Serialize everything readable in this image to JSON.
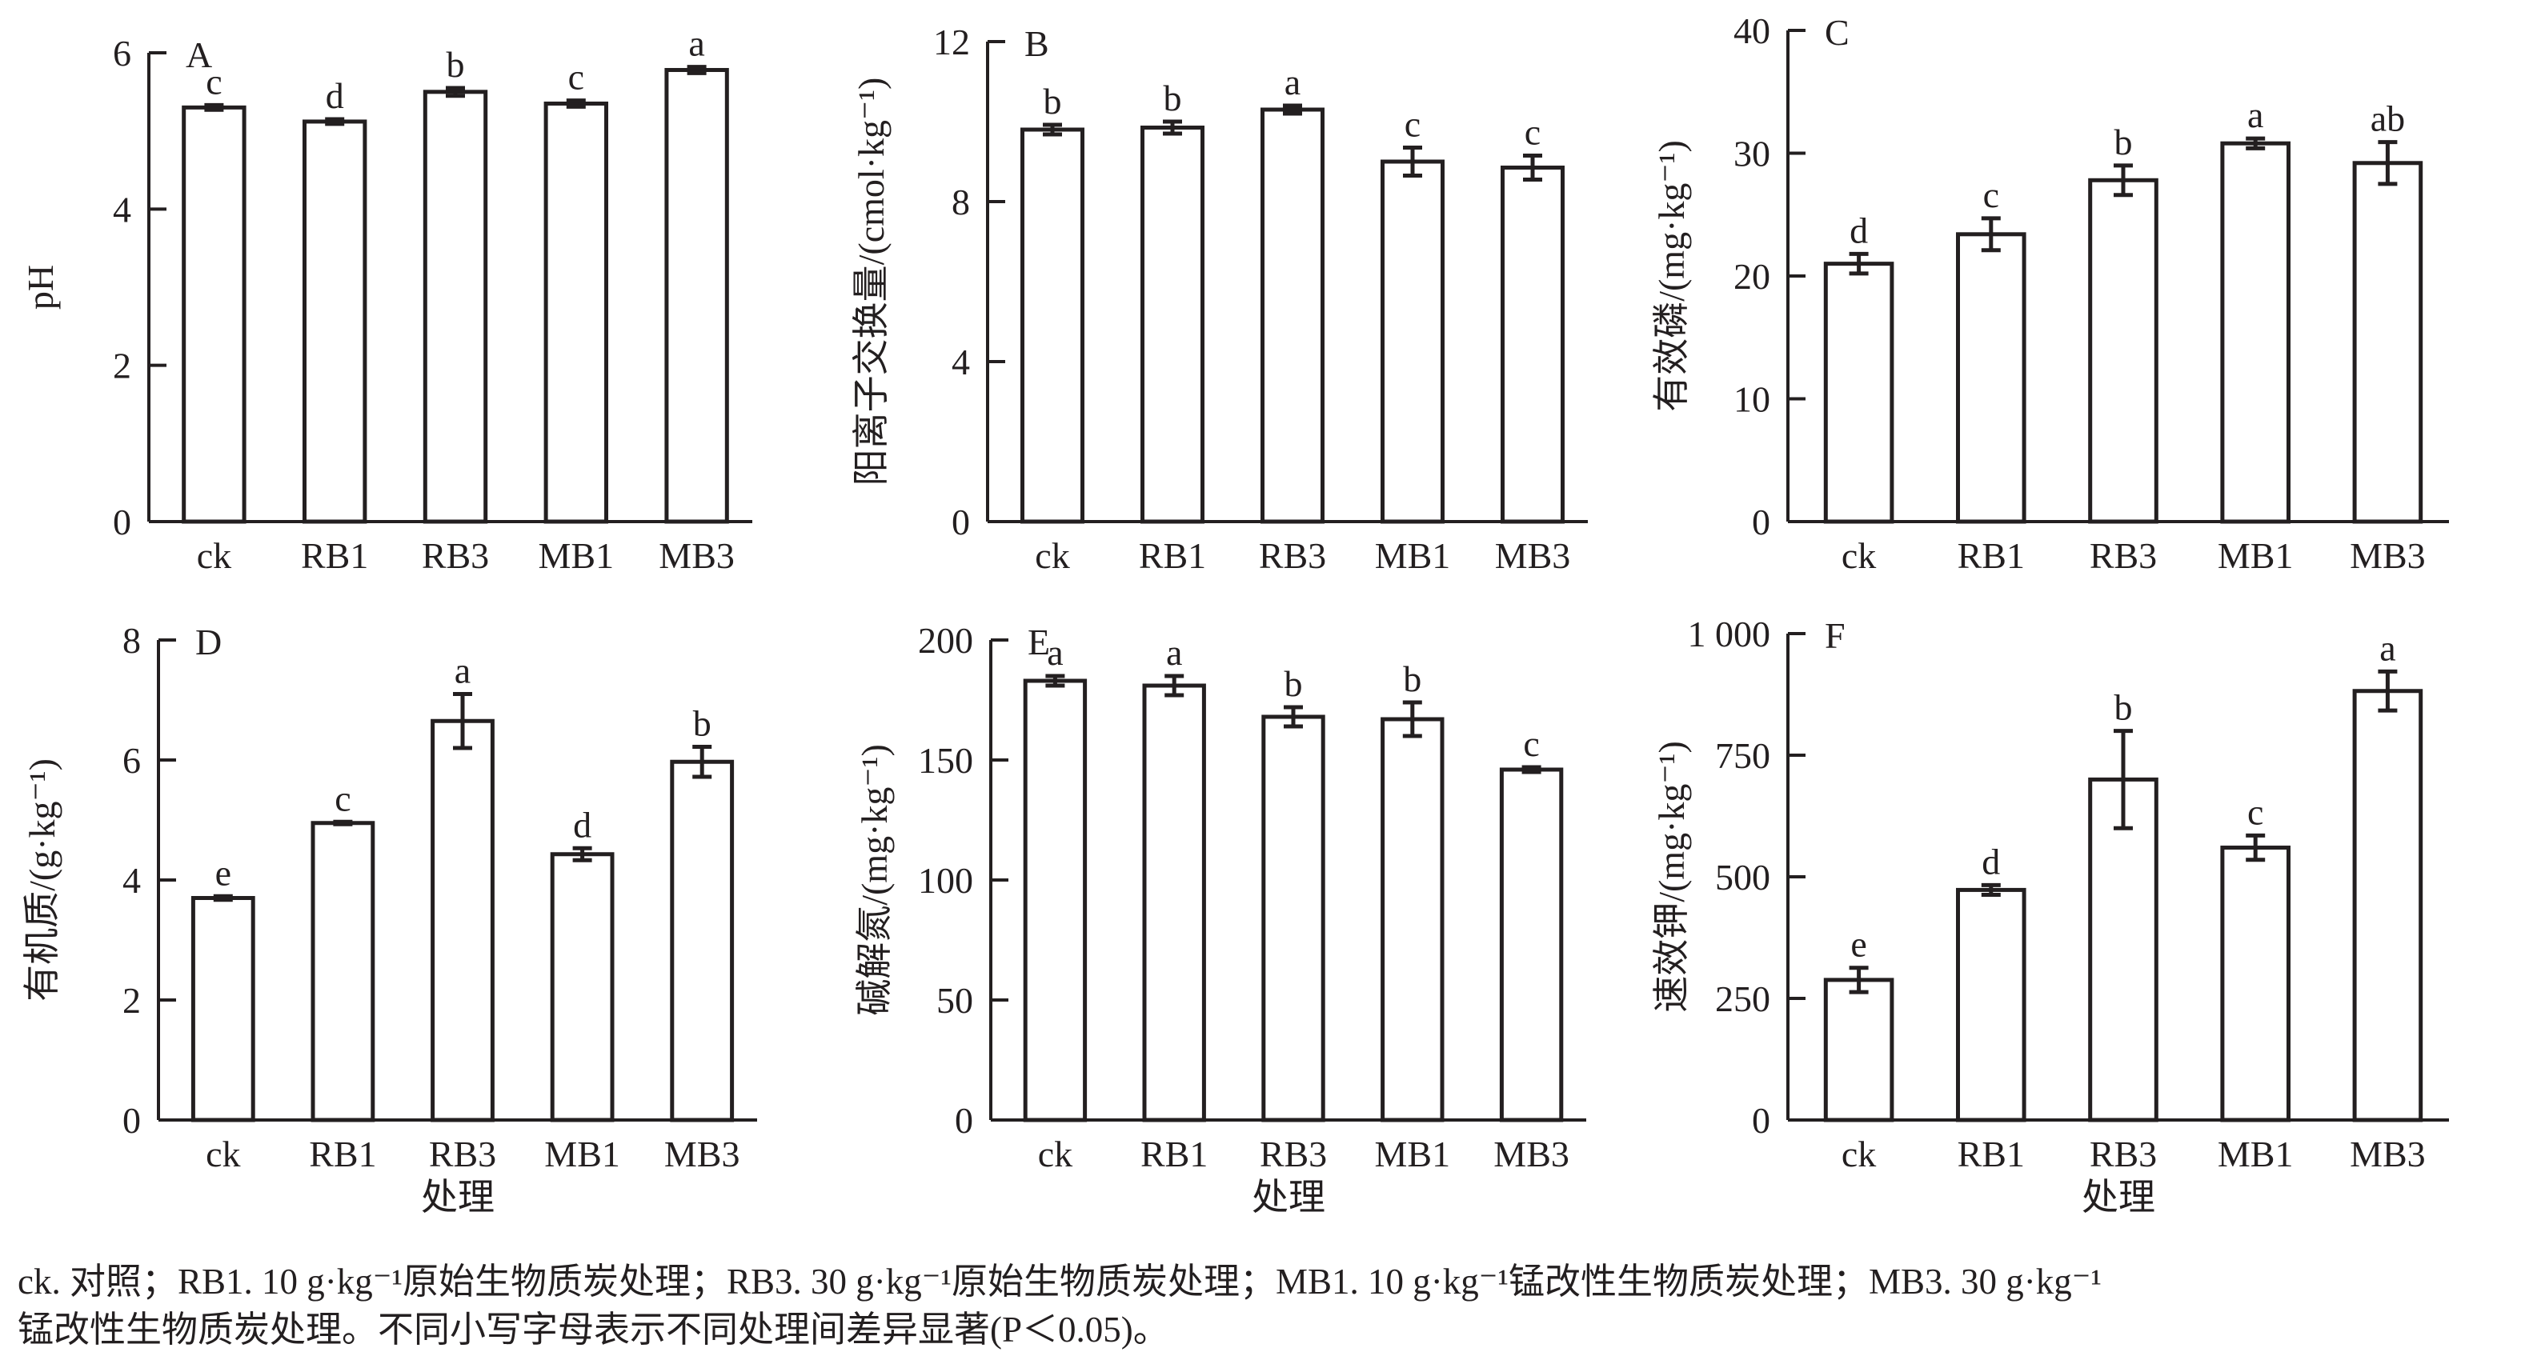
{
  "chart_data": [
    {
      "type": "bar",
      "panel": "A",
      "ylabel": "pH",
      "xlabel": "",
      "categories": [
        "ck",
        "RB1",
        "RB3",
        "MB1",
        "MB3"
      ],
      "values": [
        5.3,
        5.12,
        5.5,
        5.35,
        5.78
      ],
      "errors": [
        0.03,
        0.03,
        0.05,
        0.04,
        0.04
      ],
      "letters": [
        "c",
        "d",
        "b",
        "c",
        "a"
      ],
      "ylim": [
        0,
        6
      ],
      "yticks": [
        0,
        2,
        4,
        6
      ],
      "ytick_labels": [
        "0",
        "2",
        "4",
        "6"
      ]
    },
    {
      "type": "bar",
      "panel": "B",
      "ylabel": "阳离子交换量/(cmol·kg⁻¹)",
      "xlabel": "",
      "categories": [
        "ck",
        "RB1",
        "RB3",
        "MB1",
        "MB3"
      ],
      "values": [
        9.8,
        9.85,
        10.3,
        9.0,
        8.85
      ],
      "errors": [
        0.12,
        0.15,
        0.1,
        0.35,
        0.3
      ],
      "letters": [
        "b",
        "b",
        "a",
        "c",
        "c"
      ],
      "ylim": [
        0,
        12
      ],
      "yticks": [
        0,
        4,
        8,
        12
      ],
      "ytick_labels": [
        "0",
        "4",
        "8",
        "12"
      ]
    },
    {
      "type": "bar",
      "panel": "C",
      "ylabel": "有效磷/(mg·kg⁻¹)",
      "xlabel": "",
      "categories": [
        "ck",
        "RB1",
        "RB3",
        "MB1",
        "MB3"
      ],
      "values": [
        21.0,
        23.4,
        27.8,
        30.8,
        29.2
      ],
      "errors": [
        0.8,
        1.3,
        1.2,
        0.4,
        1.7
      ],
      "letters": [
        "d",
        "c",
        "b",
        "a",
        "ab"
      ],
      "ylim": [
        0,
        40
      ],
      "yticks": [
        0,
        10,
        20,
        30,
        40
      ],
      "ytick_labels": [
        "0",
        "10",
        "20",
        "30",
        "40"
      ]
    },
    {
      "type": "bar",
      "panel": "D",
      "ylabel": "有机质/(g·kg⁻¹)",
      "xlabel": "处理",
      "categories": [
        "ck",
        "RB1",
        "RB3",
        "MB1",
        "MB3"
      ],
      "values": [
        3.7,
        4.95,
        6.65,
        4.43,
        5.97
      ],
      "errors": [
        0.03,
        0.02,
        0.45,
        0.1,
        0.25
      ],
      "letters": [
        "e",
        "c",
        "a",
        "d",
        "b"
      ],
      "ylim": [
        0,
        8
      ],
      "yticks": [
        0,
        2,
        4,
        6,
        8
      ],
      "ytick_labels": [
        "0",
        "2",
        "4",
        "6",
        "8"
      ]
    },
    {
      "type": "bar",
      "panel": "E",
      "ylabel": "碱解氮/(mg·kg⁻¹)",
      "xlabel": "处理",
      "categories": [
        "ck",
        "RB1",
        "RB3",
        "MB1",
        "MB3"
      ],
      "values": [
        183,
        181,
        168,
        167,
        146
      ],
      "errors": [
        2,
        4,
        4,
        7,
        1
      ],
      "letters": [
        "a",
        "a",
        "b",
        "b",
        "c"
      ],
      "ylim": [
        0,
        200
      ],
      "yticks": [
        0,
        50,
        100,
        150,
        200
      ],
      "ytick_labels": [
        "0",
        "50",
        "100",
        "150",
        "200"
      ]
    },
    {
      "type": "bar",
      "panel": "F",
      "ylabel": "速效钾/(mg·kg⁻¹)",
      "xlabel": "处理",
      "categories": [
        "ck",
        "RB1",
        "RB3",
        "MB1",
        "MB3"
      ],
      "values": [
        288,
        473,
        700,
        560,
        882
      ],
      "errors": [
        25,
        10,
        100,
        25,
        40
      ],
      "letters": [
        "e",
        "d",
        "b",
        "c",
        "a"
      ],
      "ylim": [
        0,
        1000
      ],
      "yticks": [
        0,
        250,
        500,
        750,
        1000
      ],
      "ytick_labels": [
        "0",
        "250",
        "500",
        "750",
        "1 000"
      ]
    }
  ],
  "caption": {
    "line1": "ck. 对照；RB1. 10 g·kg⁻¹原始生物质炭处理；RB3. 30 g·kg⁻¹原始生物质炭处理；MB1. 10 g·kg⁻¹锰改性生物质炭处理；MB3. 30 g·kg⁻¹",
    "line2": "锰改性生物质炭处理。不同小写字母表示不同处理间差异显著(P＜0.05)。"
  },
  "colors": {
    "ink": "#231f20",
    "bar_fill": "#ffffff"
  }
}
